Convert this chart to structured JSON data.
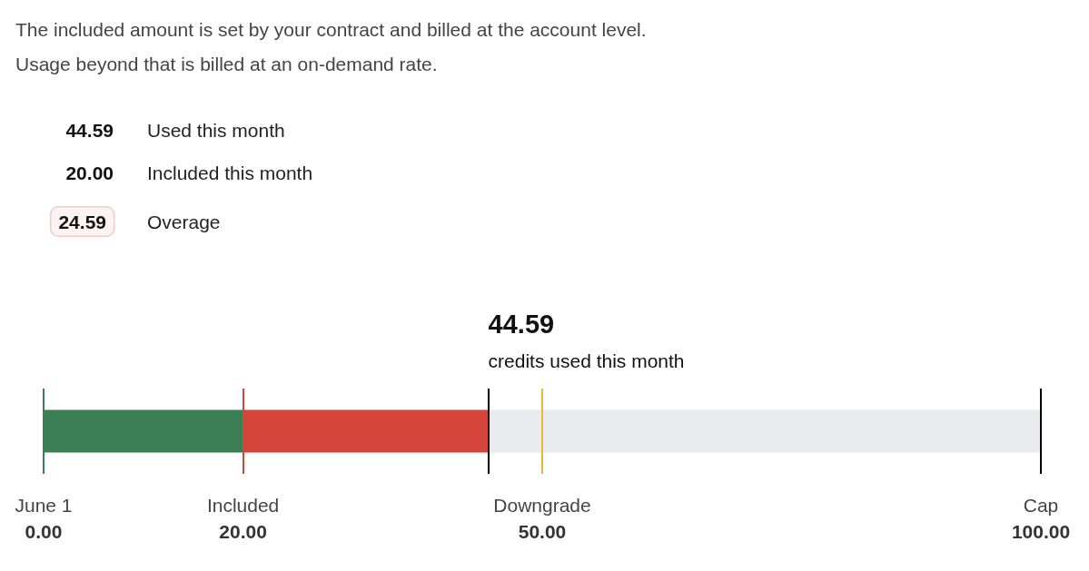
{
  "chart_data": {
    "type": "bar",
    "orientation": "horizontal",
    "stacked": true,
    "categories": [
      null
    ],
    "series": [
      {
        "color": "#3d7f55",
        "values": [
          20
        ]
      },
      {
        "color": "#d4443b",
        "values": [
          24.59
        ]
      },
      {
        "color": "#e9eaee",
        "values": [
          55.41
        ]
      }
    ],
    "xlim": [
      0,
      100
    ],
    "xticks": [
      {
        "value": 0,
        "label": "0.00"
      },
      {
        "value": 20,
        "label": "20.00"
      },
      {
        "value": 50,
        "label": "50.00"
      },
      {
        "value": 100,
        "label": "100.00"
      }
    ],
    "tick_labels": "x",
    "ref_lines": [
      {
        "axis": "x",
        "value": 0,
        "label": "June 1",
        "color": "#3d7f55"
      },
      {
        "axis": "x",
        "value": 20,
        "label": "Included",
        "color": "#d4443b"
      },
      {
        "axis": "x",
        "value": 44.59,
        "color": "#000000"
      },
      {
        "axis": "x",
        "value": 50,
        "label": "Downgrade",
        "color": "#f0b43a"
      },
      {
        "axis": "x",
        "value": 100,
        "label": "Cap",
        "color": "#000000"
      }
    ],
    "annotations": [
      "The included amount is set by your contract and billed at the account level.",
      "Usage beyond that is billed at an on-demand rate.",
      "44.59",
      "Used this month",
      "20.00",
      "Included this month",
      "24.59",
      "Overage",
      "44.59",
      "credits used this month"
    ]
  }
}
